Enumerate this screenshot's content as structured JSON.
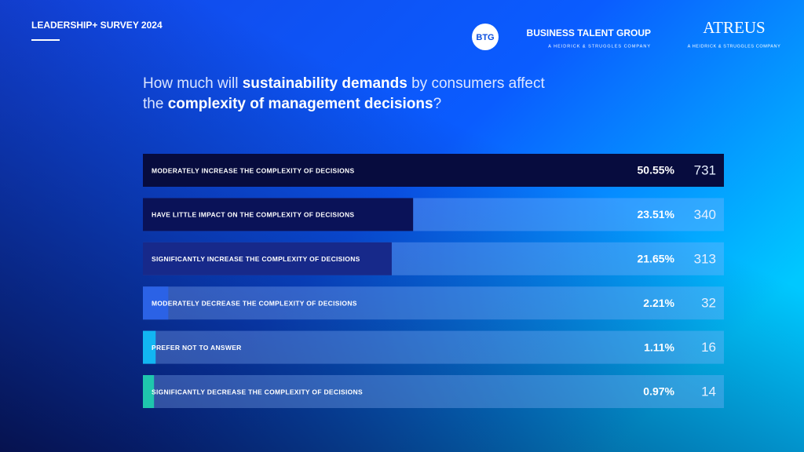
{
  "header": {
    "survey": "LEADERSHIP+ SURVEY 2024",
    "btg_badge": "BTG",
    "btg_name": "BUSINESS TALENT GROUP",
    "btg_sub": "A HEIDRICK & STRUGGLES COMPANY",
    "atreus_name": "ATREUS",
    "atreus_sub": "A HEIDRICK & STRUGGLES COMPANY"
  },
  "chart_data": {
    "type": "bar",
    "title": [
      [
        {
          "text": "How much will ",
          "bold": false
        },
        {
          "text": "sustainability demands",
          "bold": true
        },
        {
          "text": " by consumers affect",
          "bold": false
        }
      ],
      [
        {
          "text": "the ",
          "bold": false
        },
        {
          "text": "complexity of management decisions",
          "bold": true
        },
        {
          "text": "?",
          "bold": false
        }
      ]
    ],
    "categories": [
      "MODERATELY INCREASE THE COMPLEXITY OF DECISIONS",
      "HAVE LITTLE IMPACT ON THE COMPLEXITY OF DECISIONS",
      "SIGNIFICANTLY INCREASE THE COMPLEXITY OF DECISIONS",
      "MODERATELY DECREASE THE COMPLEXITY OF DECISIONS",
      "PREFER NOT TO ANSWER",
      "SIGNIFICANTLY DECREASE THE COMPLEXITY OF DECISIONS"
    ],
    "values": [
      50.55,
      23.51,
      21.65,
      2.21,
      1.11,
      0.97
    ],
    "value_labels": [
      "50.55%",
      "23.51%",
      "21.65%",
      "2.21%",
      "1.11%",
      "0.97%"
    ],
    "counts": [
      731,
      340,
      313,
      32,
      16,
      14
    ],
    "colors": [
      "#070c3e",
      "#0a1258",
      "#17298a",
      "#2b62e6",
      "#12b6f2",
      "#1fc6ad"
    ]
  }
}
